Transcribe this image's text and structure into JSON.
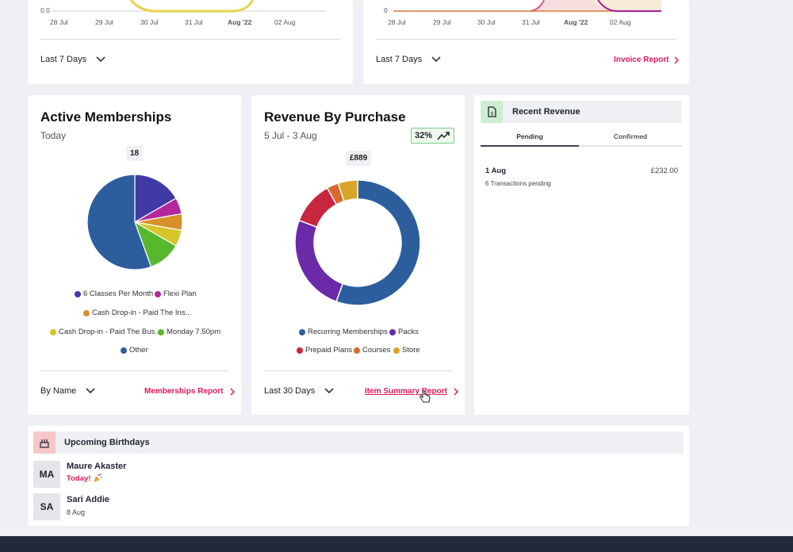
{
  "top_left_card": {
    "y_tick": "0.0",
    "x_ticks": [
      "28 Jul",
      "29 Jul",
      "30 Jul",
      "31 Jul",
      "Aug '22",
      "02 Aug"
    ],
    "range_label": "Last 7 Days",
    "line_color": "#e6d44a"
  },
  "top_mid_card": {
    "y_tick": "0",
    "x_ticks": [
      "28 Jul",
      "29 Jul",
      "30 Jul",
      "31 Jul",
      "Aug '22",
      "02 Aug"
    ],
    "range_label": "Last 7 Days",
    "report_link": "Invoice Report"
  },
  "active_memberships": {
    "title": "Active Memberships",
    "subtitle": "Today",
    "total": "18",
    "legend": [
      {
        "label": "6 Classes Per Month",
        "color": "#3f3aa6"
      },
      {
        "label": "Flexi Plan",
        "color": "#b5279c"
      },
      {
        "label": "Cash Drop-in - Paid The Ins...",
        "color": "#d6902a"
      },
      {
        "label": "Cash Drop-in - Paid The Bus...",
        "color": "#d4c62a"
      },
      {
        "label": "Monday 7.50pm",
        "color": "#57b82e"
      },
      {
        "label": "Other",
        "color": "#2c5e9e"
      }
    ],
    "sort_label": "By Name",
    "report_link": "Memberships Report"
  },
  "revenue_by_purchase": {
    "title": "Revenue By Purchase",
    "subtitle": "5 Jul - 3 Aug",
    "growth": "32%",
    "total": "£889",
    "legend": [
      {
        "label": "Recurring Memberships",
        "color": "#2c5e9e"
      },
      {
        "label": "Packs",
        "color": "#6b2aa8"
      },
      {
        "label": "Prepaid Plans",
        "color": "#c7263e"
      },
      {
        "label": "Courses",
        "color": "#d86a2e"
      },
      {
        "label": "Store",
        "color": "#d8a52a"
      }
    ],
    "range_label": "Last 30 Days",
    "report_link": "Item Summary Report"
  },
  "recent_revenue": {
    "title": "Recent Revenue",
    "tabs": [
      "Pending",
      "Confirmed"
    ],
    "entry": {
      "date": "1 Aug",
      "amount": "£232.00",
      "detail": "6 Transactions pending"
    }
  },
  "birthdays": {
    "title": "Upcoming Birthdays",
    "people": [
      {
        "initials": "MA",
        "name": "Maure Akaster",
        "when": "Today!"
      },
      {
        "initials": "SA",
        "name": "Sari Addie",
        "when": "8 Aug"
      }
    ]
  },
  "chart_data": [
    {
      "type": "pie",
      "title": "Active Memberships",
      "categories": [
        "6 Classes Per Month",
        "Flexi Plan",
        "Cash Drop-in - Paid The Ins...",
        "Cash Drop-in - Paid The Bus...",
        "Monday 7.50pm",
        "Other"
      ],
      "values": [
        3,
        1,
        1,
        1,
        2,
        10
      ],
      "colors": [
        "#3f3aa6",
        "#b5279c",
        "#d6902a",
        "#d4c62a",
        "#57b82e",
        "#2c5e9e"
      ]
    },
    {
      "type": "pie",
      "title": "Revenue By Purchase",
      "categories": [
        "Recurring Memberships",
        "Packs",
        "Prepaid Plans",
        "Courses",
        "Store"
      ],
      "values": [
        55,
        25,
        11,
        3,
        5
      ],
      "colors": [
        "#2c5e9e",
        "#6b2aa8",
        "#c7263e",
        "#d86a2e",
        "#d8a52a"
      ]
    }
  ]
}
